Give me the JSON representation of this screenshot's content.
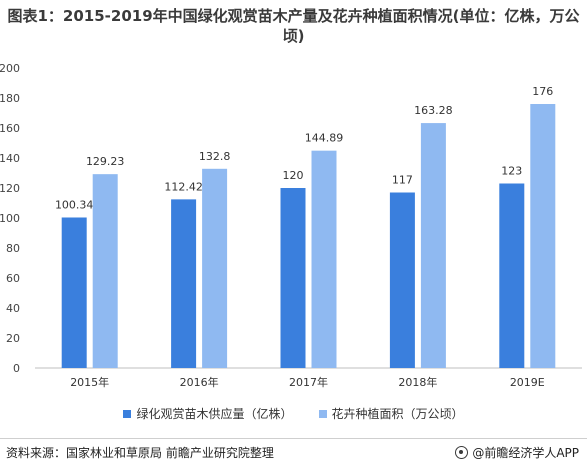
{
  "title": "图表1：2015-2019年中国绿化观赏苗木产量及花卉种植面积情况(单位：亿株，万公顷)",
  "chart_data": {
    "type": "bar",
    "categories": [
      "2015年",
      "2016年",
      "2017年",
      "2018年",
      "2019E"
    ],
    "series": [
      {
        "name": "绿化观赏苗木供应量（亿株）",
        "color": "#3a7fdd",
        "values": [
          100.34,
          112.42,
          120,
          117,
          123
        ],
        "labels": [
          "100.34",
          "112.42",
          "120",
          "117",
          "123"
        ]
      },
      {
        "name": "花卉种植面积（万公顷）",
        "color": "#8fb9f1",
        "values": [
          129.23,
          132.8,
          144.89,
          163.28,
          176
        ],
        "labels": [
          "129.23",
          "132.8",
          "144.89",
          "163.28",
          "176"
        ]
      }
    ],
    "ylim": [
      0,
      200
    ],
    "yticks": [
      0,
      20,
      40,
      60,
      80,
      100,
      120,
      140,
      160,
      180,
      200
    ],
    "grid": false,
    "legend_position": "bottom"
  },
  "footer": {
    "source": "资料来源：国家林业和草原局 前瞻产业研究院整理",
    "brand": "@前瞻经济学人APP"
  }
}
